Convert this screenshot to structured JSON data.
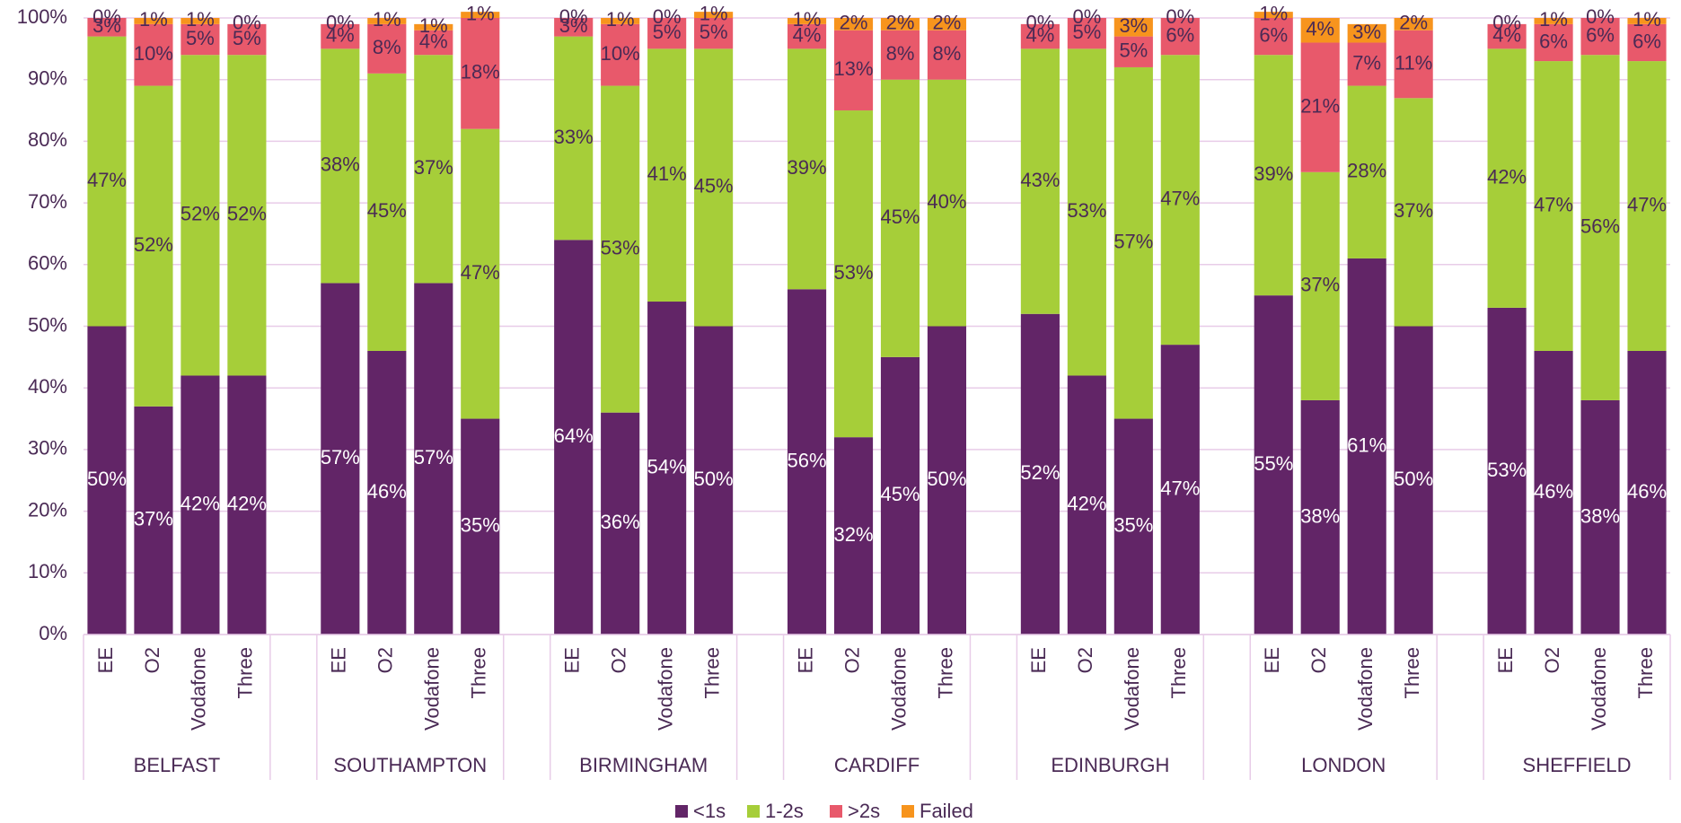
{
  "chart_data": {
    "type": "stacked_bar",
    "groups": [
      {
        "label": "BELFAST",
        "categories": [
          "EE",
          "O2",
          "Vodafone",
          "Three"
        ]
      },
      {
        "label": "SOUTHAMPTON",
        "categories": [
          "EE",
          "O2",
          "Vodafone",
          "Three"
        ]
      },
      {
        "label": "BIRMINGHAM",
        "categories": [
          "EE",
          "O2",
          "Vodafone",
          "Three"
        ]
      },
      {
        "label": "CARDIFF",
        "categories": [
          "EE",
          "O2",
          "Vodafone",
          "Three"
        ]
      },
      {
        "label": "EDINBURGH",
        "categories": [
          "EE",
          "O2",
          "Vodafone",
          "Three"
        ]
      },
      {
        "label": "LONDON",
        "categories": [
          "EE",
          "O2",
          "Vodafone",
          "Three"
        ]
      },
      {
        "label": "SHEFFIELD",
        "categories": [
          "EE",
          "O2",
          "Vodafone",
          "Three"
        ]
      }
    ],
    "series": [
      {
        "name": "<1s",
        "color": "#622567",
        "values": [
          50,
          37,
          42,
          42,
          57,
          46,
          57,
          35,
          64,
          36,
          54,
          50,
          56,
          32,
          45,
          50,
          52,
          42,
          35,
          47,
          55,
          38,
          61,
          50,
          53,
          46,
          38,
          46
        ],
        "value_labels": [
          "50%",
          "37%",
          "42%",
          "42%",
          "57%",
          "46%",
          "57%",
          "35%",
          "64%",
          "36%",
          "54%",
          "50%",
          "56%",
          "32%",
          "45%",
          "50%",
          "52%",
          "42%",
          "35%",
          "47%",
          "55%",
          "38%",
          "61%",
          "50%",
          "53%",
          "46%",
          "38%",
          "46%"
        ]
      },
      {
        "name": "1-2s",
        "color": "#a6ce39",
        "values": [
          47,
          52,
          52,
          52,
          38,
          45,
          37,
          47,
          33,
          53,
          41,
          45,
          39,
          53,
          45,
          40,
          43,
          53,
          57,
          47,
          39,
          37,
          28,
          37,
          42,
          47,
          56,
          47
        ],
        "value_labels": [
          "47%",
          "52%",
          "52%",
          "52%",
          "38%",
          "45%",
          "37%",
          "47%",
          "33%",
          "53%",
          "41%",
          "45%",
          "39%",
          "53%",
          "45%",
          "40%",
          "43%",
          "53%",
          "57%",
          "47%",
          "39%",
          "37%",
          "28%",
          "37%",
          "42%",
          "47%",
          "56%",
          "47%"
        ]
      },
      {
        "name": ">2s",
        "color": "#e8596b",
        "values": [
          3,
          10,
          5,
          5,
          4,
          8,
          4,
          18,
          3,
          10,
          5,
          5,
          4,
          13,
          8,
          8,
          4,
          5,
          5,
          6,
          6,
          21,
          7,
          11,
          4,
          6,
          6,
          6
        ],
        "value_labels": [
          "3%",
          "10%",
          "5%",
          "5%",
          "4%",
          "8%",
          "4%",
          "18%",
          "3%",
          "10%",
          "5%",
          "5%",
          "4%",
          "13%",
          "8%",
          "8%",
          "4%",
          "5%",
          "5%",
          "6%",
          "6%",
          "21%",
          "7%",
          "11%",
          "4%",
          "6%",
          "6%",
          "6%"
        ]
      },
      {
        "name": "Failed",
        "color": "#f7941d",
        "values": [
          0,
          1,
          1,
          0,
          0,
          1,
          1,
          1,
          0,
          1,
          0,
          1,
          1,
          2,
          2,
          2,
          0,
          0,
          3,
          0,
          1,
          4,
          3,
          2,
          0,
          1,
          0,
          1
        ],
        "value_labels": [
          "0%",
          "1%",
          "1%",
          "0%",
          "0%",
          "1%",
          "1%",
          "1%",
          "0%",
          "1%",
          "0%",
          "1%",
          "1%",
          "2%",
          "2%",
          "2%",
          "0%",
          "0%",
          "3%",
          "0%",
          "1%",
          "4%",
          "3%",
          "2%",
          "0%",
          "1%",
          "0%",
          "1%"
        ]
      }
    ],
    "ylim": [
      0,
      100
    ],
    "yticks": [
      {
        "value": 0,
        "label": "0%"
      },
      {
        "value": 10,
        "label": "10%"
      },
      {
        "value": 20,
        "label": "20%"
      },
      {
        "value": 30,
        "label": "30%"
      },
      {
        "value": 40,
        "label": "40%"
      },
      {
        "value": 50,
        "label": "50%"
      },
      {
        "value": 60,
        "label": "60%"
      },
      {
        "value": 70,
        "label": "70%"
      },
      {
        "value": 80,
        "label": "80%"
      },
      {
        "value": 90,
        "label": "90%"
      },
      {
        "value": 100,
        "label": "100%"
      }
    ],
    "grid": true,
    "legend": "bottom"
  }
}
